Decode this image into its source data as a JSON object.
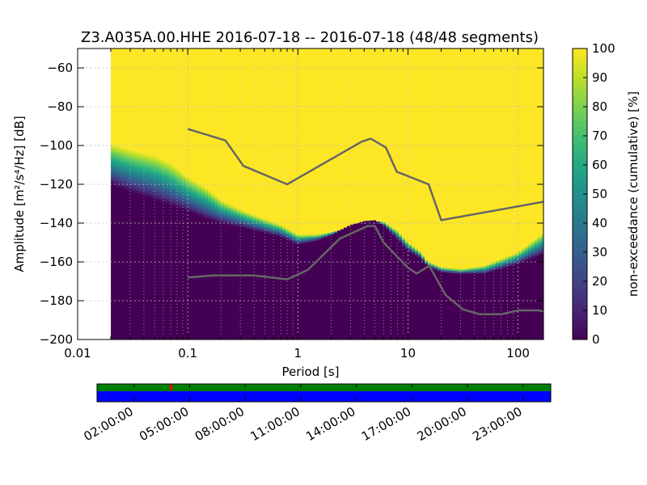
{
  "chart_data": [
    {
      "type": "heatmap",
      "title": "Z3.A035A.00.HHE   2016-07-18 -- 2016-07-18  (48/48 segments)",
      "xlabel": "Period [s]",
      "ylabel": "Amplitude [m²/s⁴/Hz] [dB]",
      "x_scale": "log",
      "xlim": [
        0.01,
        170
      ],
      "ylim": [
        -200,
        -50
      ],
      "x_tick_labels": [
        "0.01",
        "0.1",
        "1",
        "10",
        "100"
      ],
      "x_ticks": [
        0.01,
        0.1,
        1,
        10,
        100
      ],
      "y_ticks": [
        -60,
        -80,
        -100,
        -120,
        -140,
        -160,
        -180,
        -200
      ],
      "y_tick_labels": [
        "−60",
        "−80",
        "−100",
        "−120",
        "−140",
        "−160",
        "−180",
        "−200"
      ],
      "grid": true,
      "data_start_period": 0.02,
      "colorbar": {
        "label": "non-exceedance (cumulative) [%]",
        "range": [
          0,
          100
        ],
        "ticks": [
          0,
          10,
          20,
          30,
          40,
          50,
          60,
          70,
          80,
          90,
          100
        ],
        "colormap": "viridis"
      },
      "psd_bands": {
        "period": [
          0.02,
          0.03,
          0.05,
          0.07,
          0.1,
          0.15,
          0.2,
          0.3,
          0.5,
          0.7,
          1,
          1.5,
          2,
          3,
          4,
          5,
          6,
          8,
          10,
          13,
          15,
          20,
          30,
          50,
          100,
          170
        ],
        "low_edge": [
          -120,
          -124,
          -128,
          -131,
          -134,
          -138,
          -140,
          -142,
          -145,
          -147,
          -151,
          -149,
          -146,
          -141,
          -139,
          -138.5,
          -141,
          -148,
          -154,
          -158,
          -162,
          -165,
          -166,
          -166,
          -161,
          -156
        ],
        "high_edge": [
          -99,
          -102,
          -105,
          -109,
          -116,
          -122,
          -128,
          -133,
          -138,
          -141,
          -146,
          -146,
          -145,
          -142,
          -140,
          -139,
          -139.5,
          -144,
          -150,
          -155,
          -160,
          -163,
          -164,
          -162,
          -155,
          -145
        ]
      },
      "noise_models": [
        {
          "name": "high-noise-model",
          "period": [
            0.1,
            0.22,
            0.32,
            0.8,
            3.8,
            4.6,
            6.3,
            7.9,
            15.4,
            20,
            170
          ],
          "db": [
            -91.5,
            -97.4,
            -110.5,
            -120,
            -98,
            -96.5,
            -101,
            -113.5,
            -120,
            -138.5,
            -129
          ]
        },
        {
          "name": "low-noise-model",
          "period": [
            0.1,
            0.17,
            0.4,
            0.8,
            1.24,
            2.4,
            4.3,
            5,
            6,
            10,
            12,
            15.6,
            21.9,
            31.6,
            45,
            70,
            101,
            154,
            170
          ],
          "db": [
            -168,
            -167,
            -167,
            -169,
            -164,
            -148,
            -141.5,
            -141.5,
            -150,
            -163,
            -166,
            -162,
            -177,
            -184.5,
            -187,
            -187,
            -185,
            -185,
            -185.5
          ]
        }
      ]
    },
    {
      "type": "timeline",
      "x_tick_labels": [
        "02:00:00",
        "05:00:00",
        "08:00:00",
        "11:00:00",
        "14:00:00",
        "17:00:00",
        "20:00:00",
        "23:00:00"
      ],
      "x_tick_hours": [
        2,
        5,
        8,
        11,
        14,
        17,
        20,
        23
      ],
      "range_hours": [
        0,
        24.5
      ],
      "coverage_color": "#008000",
      "psd_segment_color": "#0000ff",
      "gap_marker_hour": 4,
      "gap_color": "#ff0000"
    }
  ],
  "colors": {
    "curve": "#666666",
    "background": "#ffffff",
    "viridis": [
      "#440154",
      "#482475",
      "#414487",
      "#355f8d",
      "#2a788e",
      "#21918c",
      "#22a884",
      "#44bf70",
      "#7ad151",
      "#bddf26",
      "#fde725"
    ]
  }
}
